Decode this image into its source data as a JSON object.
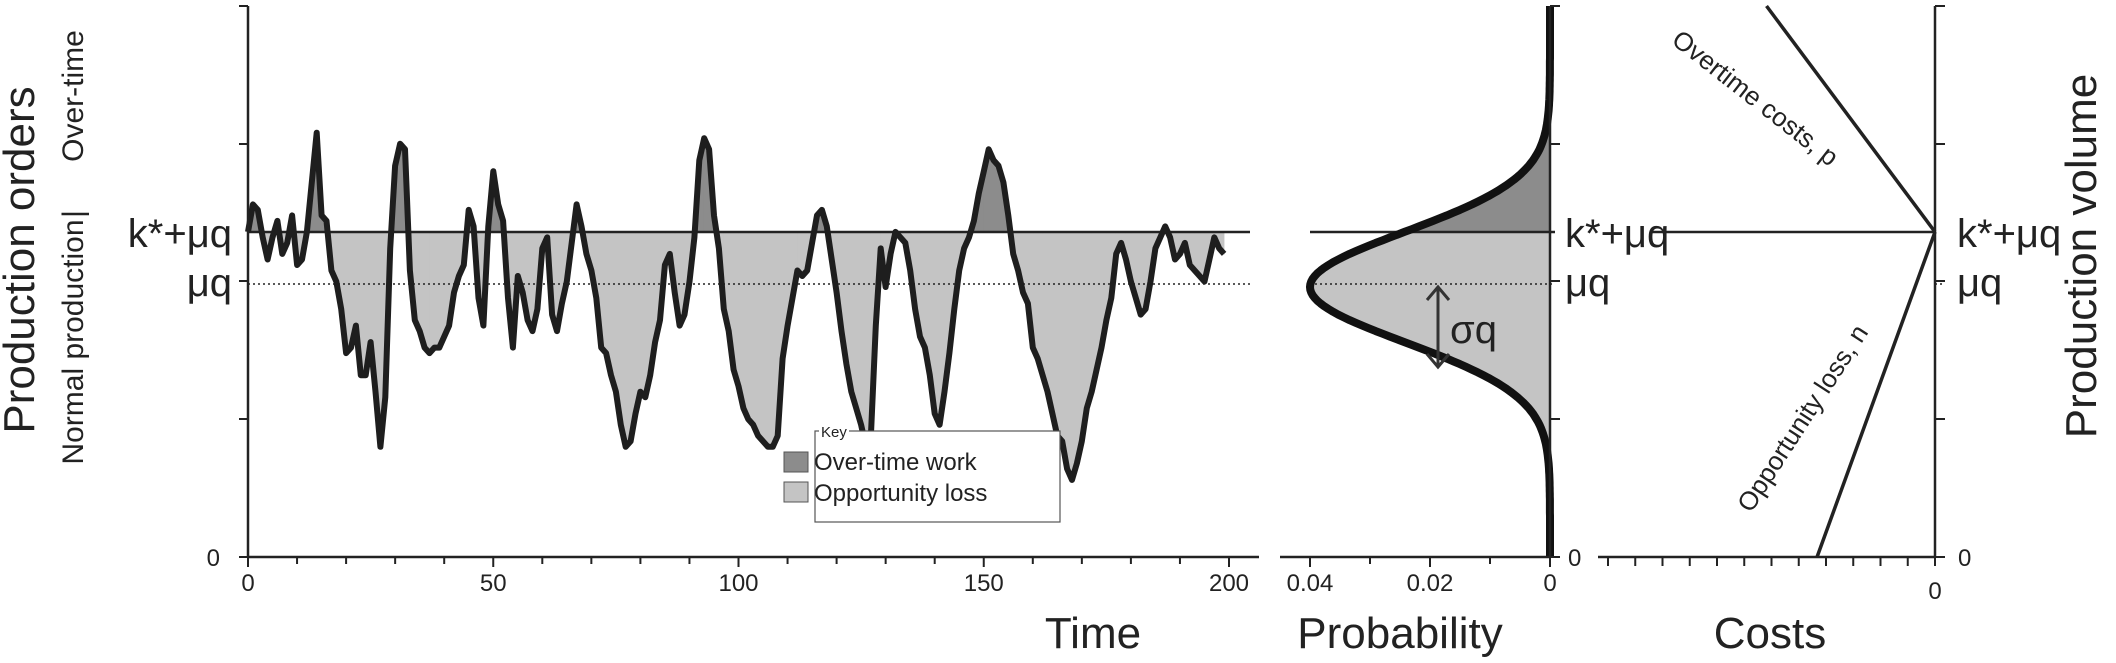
{
  "colors": {
    "overtime": "#8c8c8c",
    "opportunity": "#c4c4c4",
    "line": "#1e1e1e"
  },
  "labels": {
    "y_title": "Production orders",
    "over_time": "Over-time",
    "separator": "|",
    "normal_production": "Normal production",
    "k_mu_left": "k*+μq",
    "mu_left": "μq",
    "k_mu_mid": "k*+μq",
    "mu_mid": "μq",
    "k_mu_right": "k*+μq",
    "mu_right": "μq",
    "sigma": "σq",
    "zero_left": "0",
    "zero_mid": "0",
    "zero_right": "0",
    "time": "Time",
    "probability": "Probability",
    "costs": "Costs",
    "right_title": "Production volume",
    "overtime_costs": "Overtime costs, p",
    "opportunity_loss": "Opportunity loss, n"
  },
  "key": {
    "title": "Key",
    "items": [
      {
        "label": "Over-time work",
        "color": "#8c8c8c"
      },
      {
        "label": "Opportunity loss",
        "color": "#c4c4c4"
      }
    ]
  },
  "chart_data": [
    {
      "type": "line",
      "xlabel": "Time",
      "ylabel": "Production orders",
      "xlim": [
        0,
        200
      ],
      "ylim": [
        0,
        100
      ],
      "x_ticks": [
        "0",
        "50",
        "100",
        "150",
        "200"
      ],
      "y_reference": {
        "k_plus_mu": 59,
        "mu": 49
      },
      "series": [
        {
          "values": [
            59,
            64,
            63,
            58,
            54,
            58,
            61,
            55,
            57,
            62,
            53,
            54,
            59,
            68,
            77,
            62,
            61,
            52,
            50,
            45,
            37,
            38,
            42,
            33,
            33,
            39,
            30,
            20,
            29,
            56,
            71,
            75,
            74,
            52,
            43,
            41,
            38,
            37,
            38,
            38,
            40,
            42,
            48,
            51,
            53,
            63,
            60,
            47,
            42,
            60,
            70,
            64,
            61,
            47,
            38,
            51,
            48,
            43,
            41,
            45,
            56,
            58,
            44,
            41,
            46,
            50,
            57,
            64,
            60,
            55,
            52,
            47,
            38,
            37,
            33,
            30,
            24,
            20,
            21,
            26,
            30,
            29,
            33,
            39,
            43,
            53,
            55,
            48,
            42,
            44,
            50,
            58,
            72,
            76,
            74,
            62,
            56,
            45,
            41,
            34,
            31,
            27,
            25,
            24,
            22,
            21,
            20,
            20,
            22,
            36,
            42,
            47,
            52,
            51,
            52,
            57,
            62,
            63,
            60,
            54,
            48,
            41,
            35,
            30,
            27,
            24,
            20,
            22,
            42,
            56,
            49,
            55,
            59,
            58,
            57,
            52,
            45,
            40,
            38,
            33,
            26,
            24,
            30,
            37,
            45,
            52,
            56,
            58,
            61,
            66,
            70,
            74,
            72,
            71,
            68,
            62,
            55,
            52,
            48,
            46,
            38,
            36,
            33,
            30,
            26,
            22,
            21,
            16,
            14,
            17,
            21,
            27,
            30,
            34,
            38,
            43,
            47,
            55,
            57,
            54,
            50,
            47,
            44,
            45,
            50,
            56,
            58,
            60,
            58,
            54,
            55,
            57,
            53,
            52,
            51,
            50,
            54,
            58,
            56,
            55
          ]
        }
      ]
    },
    {
      "type": "area",
      "xlabel": "Probability",
      "x": [
        0.04,
        0.02,
        0
      ],
      "distribution": "normal",
      "mu": 49,
      "sigma": 10,
      "peak_density": 0.04,
      "ylim": [
        0,
        100
      ]
    },
    {
      "type": "line",
      "xlabel": "Costs",
      "ylabel": "Production volume",
      "x_ticks": [
        "0"
      ],
      "series": [
        {
          "name": "Overtime costs, p",
          "points": [
            [
              0,
              59
            ],
            [
              -0.5,
              100
            ]
          ]
        },
        {
          "name": "Opportunity loss, n",
          "points": [
            [
              0,
              59
            ],
            [
              -0.35,
              0
            ]
          ]
        }
      ]
    }
  ]
}
